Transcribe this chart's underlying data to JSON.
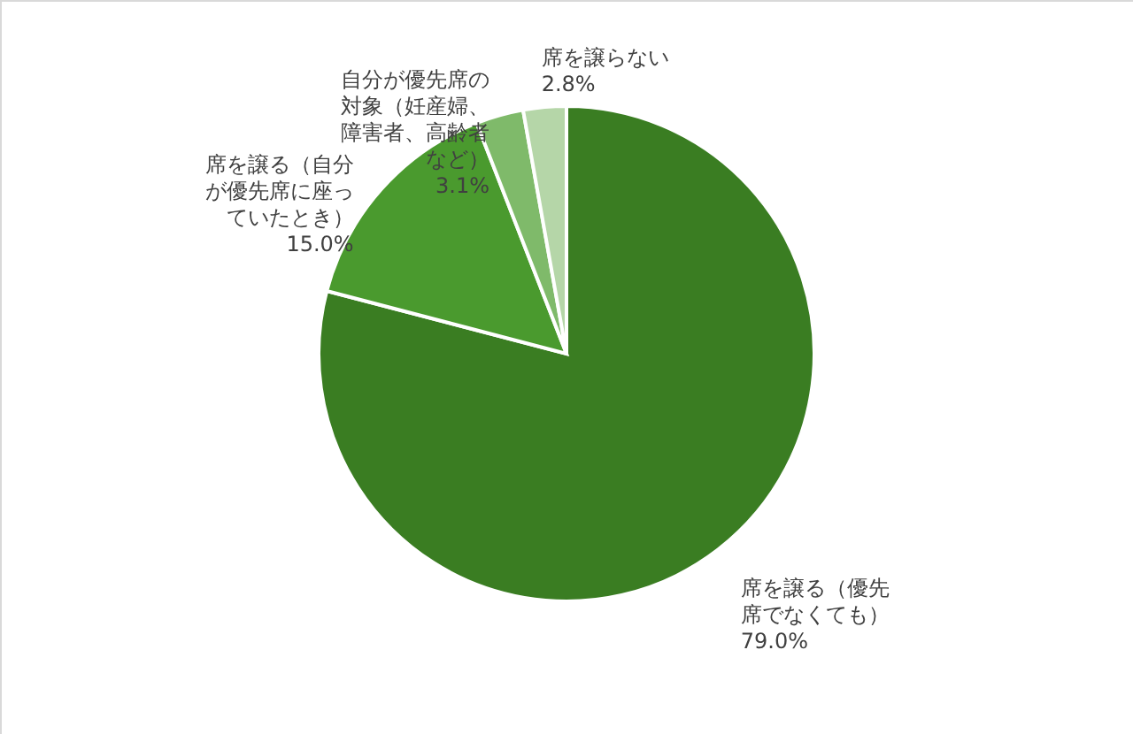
{
  "chart_data": {
    "type": "pie",
    "categories": [
      "席を譲る（優先席でなくても）",
      "席を譲る（自分が優先席に座っていたとき）",
      "自分が優先席の対象（妊産婦、障害者、高齢者など）",
      "席を譲らない"
    ],
    "values": [
      79.0,
      15.0,
      3.1,
      2.8
    ],
    "colors": [
      "#3a7d22",
      "#4a9a2e",
      "#7fba6a",
      "#b5d6a8"
    ],
    "value_labels": [
      "79.0%",
      "15.0%",
      "3.1%",
      "2.8%"
    ],
    "legend": false
  }
}
